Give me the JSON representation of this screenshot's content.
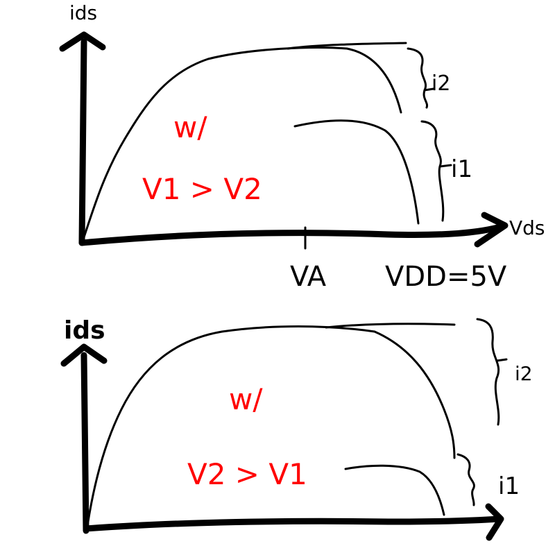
{
  "chart_data": [
    {
      "type": "line",
      "title": "",
      "xlabel": "Vds",
      "ylabel": "ids",
      "x_ticks": [
        "VA",
        "VDD=5V"
      ],
      "annotation": {
        "line1": "w/",
        "line2": "V1 > V2"
      },
      "series": [
        {
          "name": "i2",
          "values": []
        },
        {
          "name": "i1",
          "values": []
        }
      ],
      "colors": {
        "axes": "#000000",
        "annotation": "#ff0000"
      }
    },
    {
      "type": "line",
      "title": "",
      "xlabel": "",
      "ylabel": "ids",
      "annotation": {
        "line1": "w/",
        "line2": "V2 > V1"
      },
      "series": [
        {
          "name": "i2",
          "values": []
        },
        {
          "name": "i1",
          "values": []
        }
      ],
      "colors": {
        "axes": "#000000",
        "annotation": "#ff0000"
      }
    }
  ]
}
